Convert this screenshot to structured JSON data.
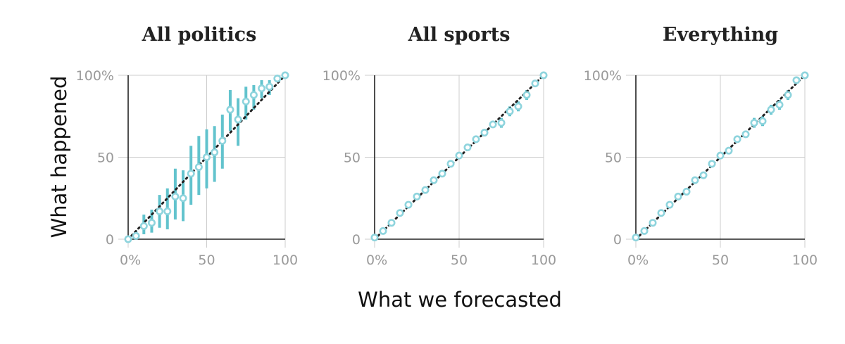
{
  "xlabel": "What we forecasted",
  "ylabel": "What happened",
  "colors": {
    "point": "#8ed4dd",
    "error_bar": "#62c3cd",
    "diagonal": "#222222",
    "grid": "#cccccc",
    "axis": "#222222"
  },
  "chart_data": [
    {
      "type": "scatter",
      "title": "All politics",
      "xlim": [
        0,
        100
      ],
      "ylim": [
        0,
        100
      ],
      "xticks": [
        "0%",
        "50",
        "100"
      ],
      "yticks": [
        "0",
        "50",
        "100%"
      ],
      "grid": true,
      "reference_line": "y = x",
      "points": [
        {
          "x": 0,
          "y": 0,
          "lo": 0,
          "hi": 1
        },
        {
          "x": 5,
          "y": 2,
          "lo": 0,
          "hi": 5
        },
        {
          "x": 10,
          "y": 8,
          "lo": 3,
          "hi": 15
        },
        {
          "x": 15,
          "y": 10,
          "lo": 4,
          "hi": 18
        },
        {
          "x": 20,
          "y": 17,
          "lo": 7,
          "hi": 27
        },
        {
          "x": 25,
          "y": 17,
          "lo": 6,
          "hi": 31
        },
        {
          "x": 30,
          "y": 26,
          "lo": 12,
          "hi": 43
        },
        {
          "x": 35,
          "y": 25,
          "lo": 11,
          "hi": 42
        },
        {
          "x": 40,
          "y": 40,
          "lo": 21,
          "hi": 57
        },
        {
          "x": 45,
          "y": 44,
          "lo": 27,
          "hi": 63
        },
        {
          "x": 50,
          "y": 50,
          "lo": 31,
          "hi": 67
        },
        {
          "x": 55,
          "y": 53,
          "lo": 35,
          "hi": 69
        },
        {
          "x": 60,
          "y": 60,
          "lo": 43,
          "hi": 76
        },
        {
          "x": 65,
          "y": 79,
          "lo": 66,
          "hi": 91
        },
        {
          "x": 70,
          "y": 73,
          "lo": 57,
          "hi": 86
        },
        {
          "x": 75,
          "y": 84,
          "lo": 73,
          "hi": 93
        },
        {
          "x": 80,
          "y": 88,
          "lo": 79,
          "hi": 94
        },
        {
          "x": 85,
          "y": 92,
          "lo": 86,
          "hi": 97
        },
        {
          "x": 90,
          "y": 93,
          "lo": 88,
          "hi": 97
        },
        {
          "x": 95,
          "y": 98,
          "lo": 96,
          "hi": 99
        },
        {
          "x": 100,
          "y": 100,
          "lo": 99,
          "hi": 100
        }
      ]
    },
    {
      "type": "scatter",
      "title": "All sports",
      "xlim": [
        0,
        100
      ],
      "ylim": [
        0,
        100
      ],
      "xticks": [
        "0%",
        "50",
        "100"
      ],
      "yticks": [
        "0",
        "50",
        "100%"
      ],
      "grid": true,
      "reference_line": "y = x",
      "points": [
        {
          "x": 0,
          "y": 1,
          "lo": 0,
          "hi": 2
        },
        {
          "x": 5,
          "y": 5,
          "lo": 4,
          "hi": 6
        },
        {
          "x": 10,
          "y": 10,
          "lo": 9,
          "hi": 11
        },
        {
          "x": 15,
          "y": 16,
          "lo": 15,
          "hi": 17
        },
        {
          "x": 20,
          "y": 21,
          "lo": 20,
          "hi": 22
        },
        {
          "x": 25,
          "y": 26,
          "lo": 25,
          "hi": 27
        },
        {
          "x": 30,
          "y": 30,
          "lo": 29,
          "hi": 31
        },
        {
          "x": 35,
          "y": 36,
          "lo": 35,
          "hi": 37
        },
        {
          "x": 40,
          "y": 40,
          "lo": 39,
          "hi": 41
        },
        {
          "x": 45,
          "y": 46,
          "lo": 45,
          "hi": 47
        },
        {
          "x": 50,
          "y": 51,
          "lo": 50,
          "hi": 52
        },
        {
          "x": 55,
          "y": 56,
          "lo": 55,
          "hi": 57
        },
        {
          "x": 60,
          "y": 61,
          "lo": 60,
          "hi": 62
        },
        {
          "x": 65,
          "y": 65,
          "lo": 64,
          "hi": 67
        },
        {
          "x": 70,
          "y": 70,
          "lo": 68,
          "hi": 72
        },
        {
          "x": 75,
          "y": 71,
          "lo": 68,
          "hi": 74
        },
        {
          "x": 80,
          "y": 78,
          "lo": 75,
          "hi": 81
        },
        {
          "x": 85,
          "y": 81,
          "lo": 78,
          "hi": 84
        },
        {
          "x": 90,
          "y": 88,
          "lo": 85,
          "hi": 91
        },
        {
          "x": 95,
          "y": 95,
          "lo": 93,
          "hi": 97
        },
        {
          "x": 100,
          "y": 100,
          "lo": 99,
          "hi": 100
        }
      ]
    },
    {
      "type": "scatter",
      "title": "Everything",
      "xlim": [
        0,
        100
      ],
      "ylim": [
        0,
        100
      ],
      "xticks": [
        "0%",
        "50",
        "100"
      ],
      "yticks": [
        "0",
        "50",
        "100%"
      ],
      "grid": true,
      "reference_line": "y = x",
      "points": [
        {
          "x": 0,
          "y": 1,
          "lo": 0,
          "hi": 2
        },
        {
          "x": 5,
          "y": 5,
          "lo": 4,
          "hi": 6
        },
        {
          "x": 10,
          "y": 10,
          "lo": 9,
          "hi": 11
        },
        {
          "x": 15,
          "y": 16,
          "lo": 15,
          "hi": 17
        },
        {
          "x": 20,
          "y": 21,
          "lo": 20,
          "hi": 22
        },
        {
          "x": 25,
          "y": 26,
          "lo": 25,
          "hi": 27
        },
        {
          "x": 30,
          "y": 29,
          "lo": 28,
          "hi": 30
        },
        {
          "x": 35,
          "y": 36,
          "lo": 35,
          "hi": 37
        },
        {
          "x": 40,
          "y": 39,
          "lo": 38,
          "hi": 40
        },
        {
          "x": 45,
          "y": 46,
          "lo": 45,
          "hi": 47
        },
        {
          "x": 50,
          "y": 51,
          "lo": 50,
          "hi": 52
        },
        {
          "x": 55,
          "y": 54,
          "lo": 53,
          "hi": 56
        },
        {
          "x": 60,
          "y": 61,
          "lo": 60,
          "hi": 63
        },
        {
          "x": 65,
          "y": 64,
          "lo": 62,
          "hi": 66
        },
        {
          "x": 70,
          "y": 71,
          "lo": 68,
          "hi": 74
        },
        {
          "x": 75,
          "y": 72,
          "lo": 69,
          "hi": 75
        },
        {
          "x": 80,
          "y": 79,
          "lo": 76,
          "hi": 82
        },
        {
          "x": 85,
          "y": 82,
          "lo": 79,
          "hi": 85
        },
        {
          "x": 90,
          "y": 88,
          "lo": 85,
          "hi": 91
        },
        {
          "x": 95,
          "y": 97,
          "lo": 95,
          "hi": 99
        },
        {
          "x": 100,
          "y": 100,
          "lo": 99,
          "hi": 100
        }
      ]
    }
  ]
}
